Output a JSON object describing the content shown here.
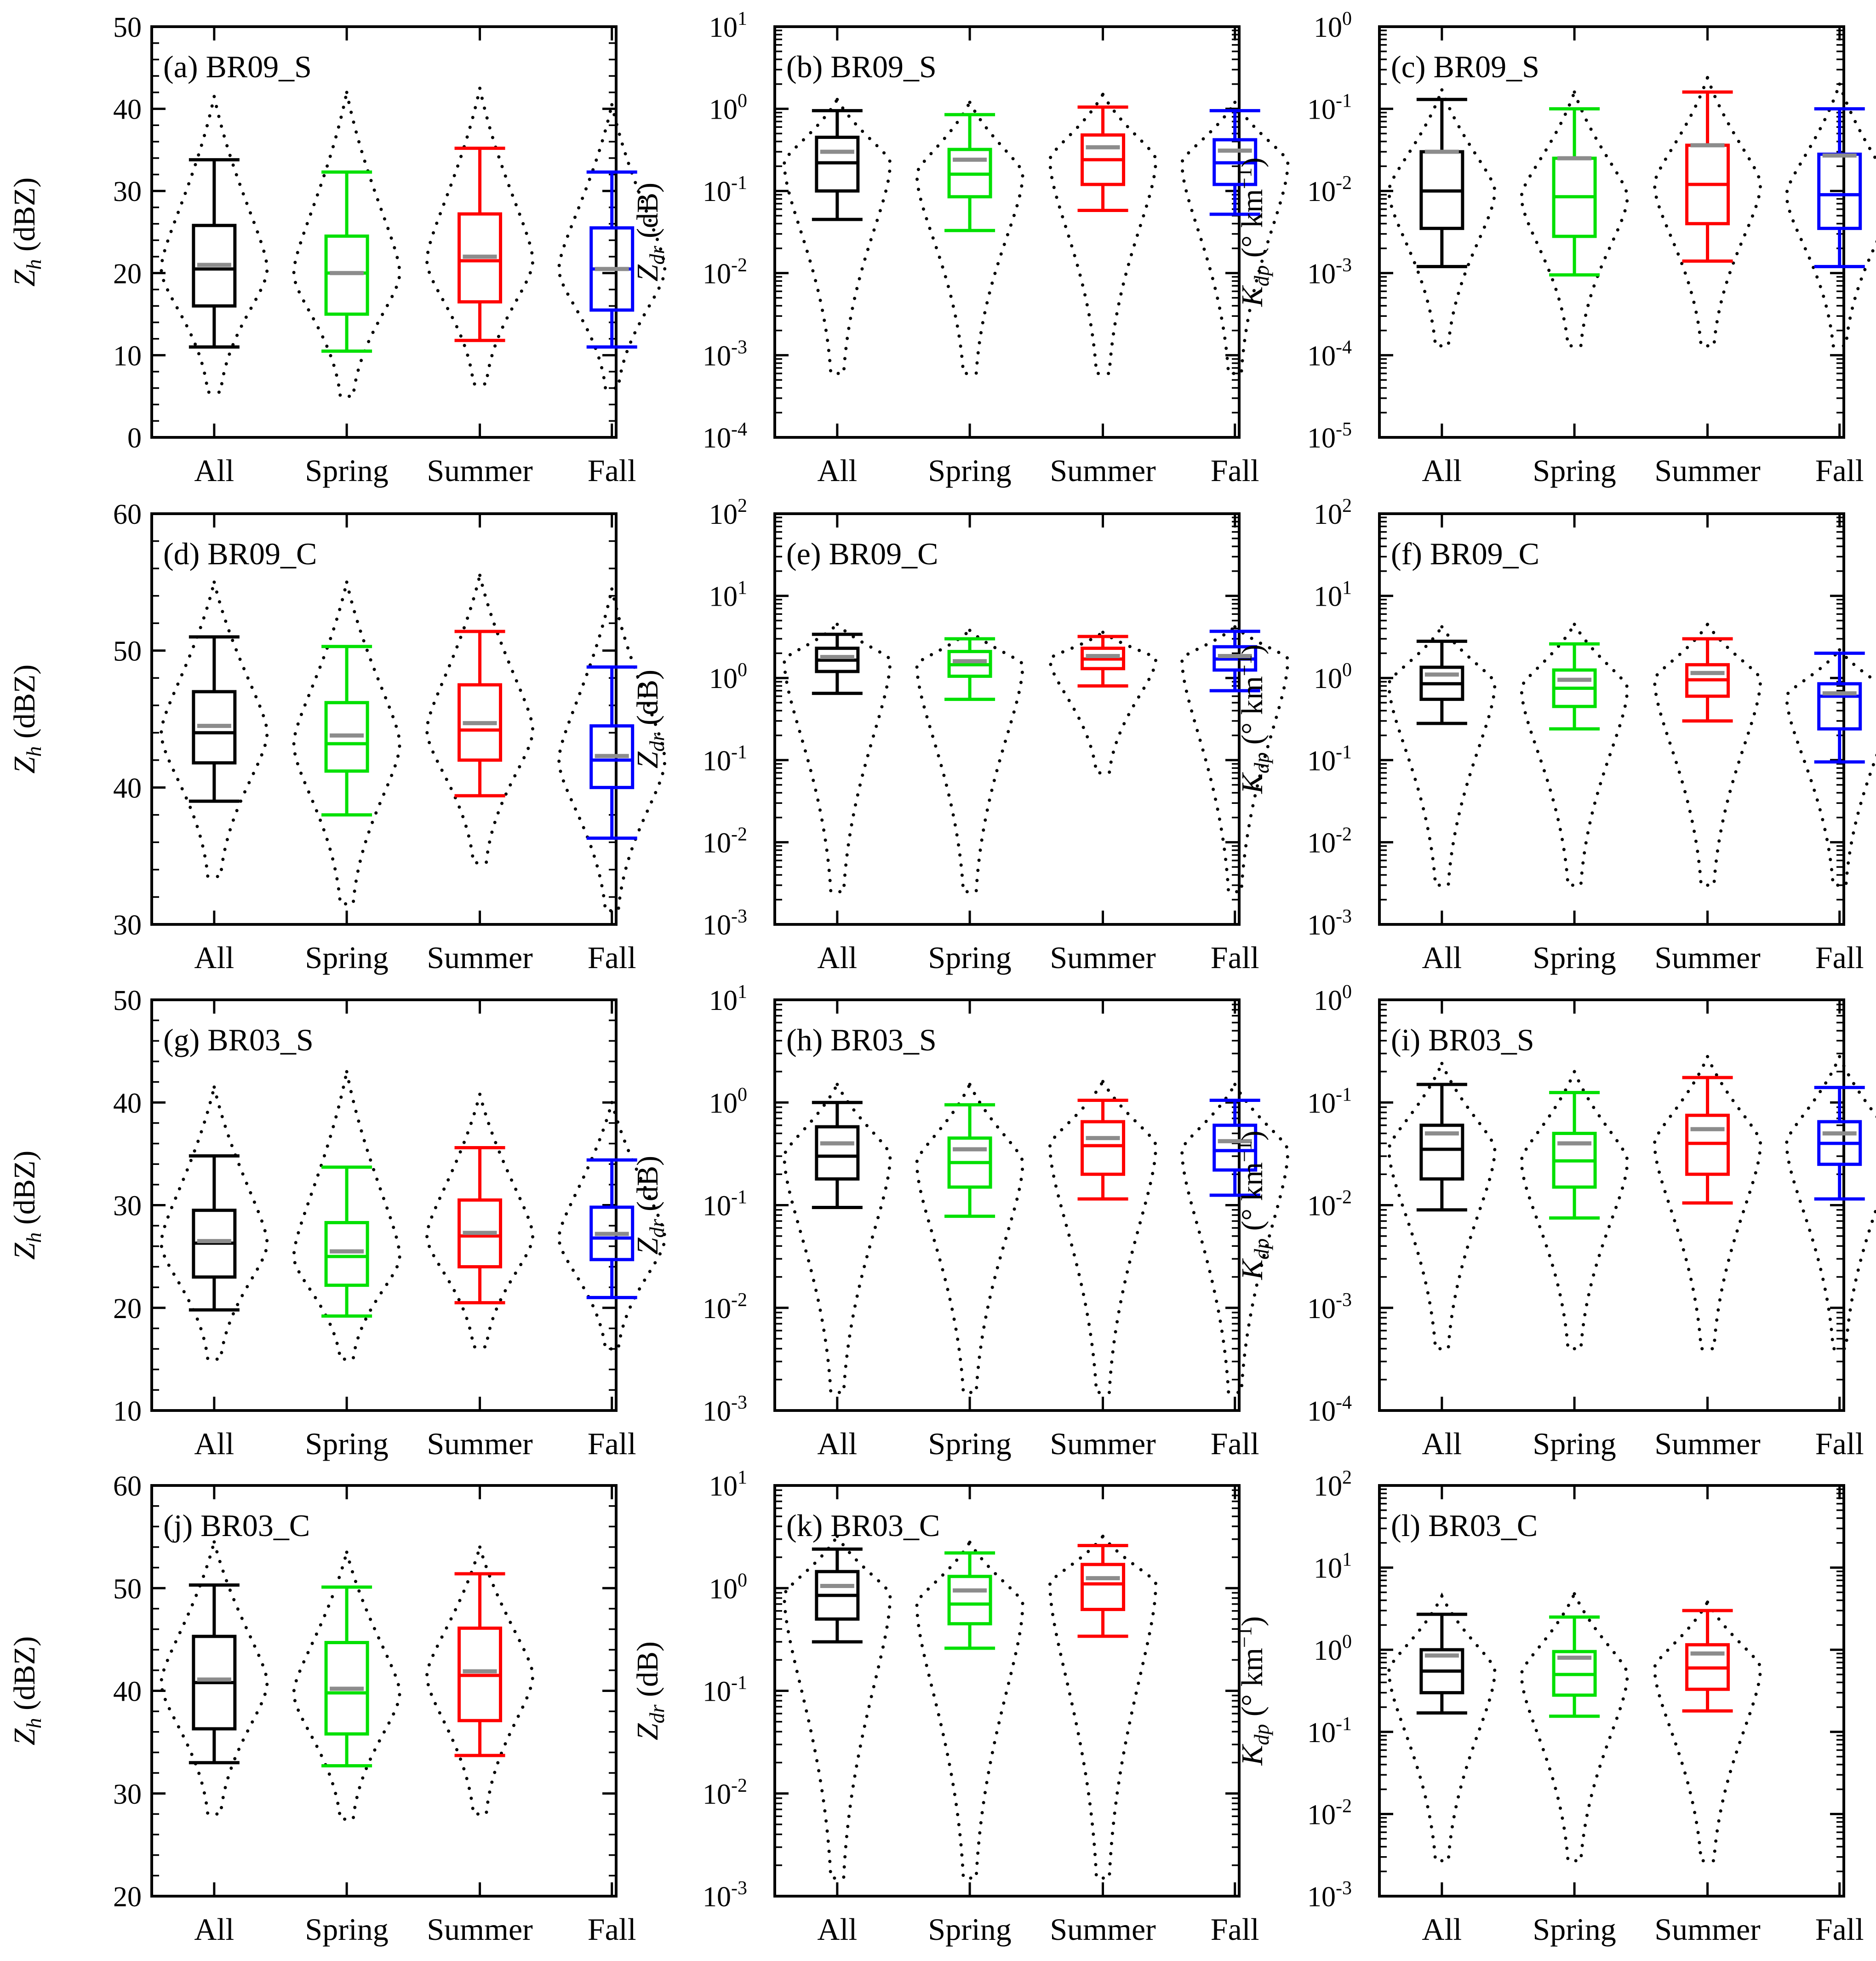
{
  "figure": {
    "categories": [
      "All",
      "Spring",
      "Summer",
      "Fall"
    ],
    "colors": {
      "All": "#000000",
      "Spring": "#00e000",
      "Summer": "#ff0000",
      "Fall": "#0000ff",
      "mean": "#8c8c8c"
    }
  },
  "chart_data": [
    {
      "id": "a",
      "title": "(a) BR09_S",
      "type": "box",
      "scale": "linear",
      "ylabel": "Z_h (dBZ)",
      "ylim": [
        0,
        50
      ],
      "yticks": [
        0,
        10,
        20,
        30,
        40,
        50
      ],
      "categories": [
        "All",
        "Spring",
        "Summer",
        "Fall"
      ],
      "boxes": [
        {
          "cat": "All",
          "whislo": 11,
          "q1": 16,
          "med": 20.5,
          "q3": 25.8,
          "whishi": 33.8,
          "mean": 21,
          "vmin": 5.5,
          "vmax": 41.5
        },
        {
          "cat": "Spring",
          "whislo": 10.5,
          "q1": 15,
          "med": 20,
          "q3": 24.5,
          "whishi": 32.3,
          "mean": 20,
          "vmin": 5,
          "vmax": 42
        },
        {
          "cat": "Summer",
          "whislo": 11.8,
          "q1": 16.5,
          "med": 21.5,
          "q3": 27.2,
          "whishi": 35.2,
          "mean": 22,
          "vmin": 6.5,
          "vmax": 42.5
        },
        {
          "cat": "Fall",
          "whislo": 11,
          "q1": 15.5,
          "med": 20.5,
          "q3": 25.5,
          "whishi": 32.3,
          "mean": 20.5,
          "vmin": 6,
          "vmax": 40.5
        }
      ]
    },
    {
      "id": "b",
      "title": "(b) BR09_S",
      "type": "box",
      "scale": "log",
      "ylabel": "Z_dr (dB)",
      "ylim": [
        -4,
        1
      ],
      "yticks": [
        -4,
        -3,
        -2,
        -1,
        0,
        1
      ],
      "categories": [
        "All",
        "Spring",
        "Summer",
        "Fall"
      ],
      "boxes": [
        {
          "cat": "All",
          "whislo": 0.045,
          "q1": 0.1,
          "med": 0.22,
          "q3": 0.45,
          "whishi": 0.95,
          "mean": 0.3,
          "vmin": 0.0006,
          "vmax": 1.3
        },
        {
          "cat": "Spring",
          "whislo": 0.033,
          "q1": 0.085,
          "med": 0.16,
          "q3": 0.32,
          "whishi": 0.85,
          "mean": 0.24,
          "vmin": 0.0006,
          "vmax": 1.2
        },
        {
          "cat": "Summer",
          "whislo": 0.058,
          "q1": 0.12,
          "med": 0.24,
          "q3": 0.48,
          "whishi": 1.05,
          "mean": 0.34,
          "vmin": 0.0006,
          "vmax": 1.5
        },
        {
          "cat": "Fall",
          "whislo": 0.052,
          "q1": 0.12,
          "med": 0.22,
          "q3": 0.42,
          "whishi": 0.95,
          "mean": 0.31,
          "vmin": 0.0006,
          "vmax": 1.2
        }
      ]
    },
    {
      "id": "c",
      "title": "(c) BR09_S",
      "type": "box",
      "scale": "log",
      "ylabel": "K_dp (° km^-1)",
      "ylim": [
        -5,
        0
      ],
      "yticks": [
        -5,
        -4,
        -3,
        -2,
        -1,
        0
      ],
      "categories": [
        "All",
        "Spring",
        "Summer",
        "Fall"
      ],
      "boxes": [
        {
          "cat": "All",
          "whislo": 0.0012,
          "q1": 0.0035,
          "med": 0.01,
          "q3": 0.03,
          "whishi": 0.13,
          "mean": 0.03,
          "vmin": 0.00013,
          "vmax": 0.17
        },
        {
          "cat": "Spring",
          "whislo": 0.00095,
          "q1": 0.0028,
          "med": 0.0085,
          "q3": 0.025,
          "whishi": 0.1,
          "mean": 0.025,
          "vmin": 0.00013,
          "vmax": 0.16
        },
        {
          "cat": "Summer",
          "whislo": 0.0014,
          "q1": 0.004,
          "med": 0.012,
          "q3": 0.036,
          "whishi": 0.16,
          "mean": 0.036,
          "vmin": 0.00013,
          "vmax": 0.24
        },
        {
          "cat": "Fall",
          "whislo": 0.0012,
          "q1": 0.0035,
          "med": 0.009,
          "q3": 0.028,
          "whishi": 0.1,
          "mean": 0.027,
          "vmin": 0.00013,
          "vmax": 0.2
        }
      ]
    },
    {
      "id": "d",
      "title": "(d) BR09_C",
      "type": "box",
      "scale": "linear",
      "ylabel": "Z_h (dBZ)",
      "ylim": [
        30,
        60
      ],
      "yticks": [
        30,
        40,
        50,
        60
      ],
      "categories": [
        "All",
        "Spring",
        "Summer",
        "Fall"
      ],
      "boxes": [
        {
          "cat": "All",
          "whislo": 39,
          "q1": 41.8,
          "med": 44,
          "q3": 47,
          "whishi": 51,
          "mean": 44.5,
          "vmin": 33.5,
          "vmax": 55
        },
        {
          "cat": "Spring",
          "whislo": 38,
          "q1": 41.2,
          "med": 43.2,
          "q3": 46.2,
          "whishi": 50.3,
          "mean": 43.8,
          "vmin": 31.5,
          "vmax": 55
        },
        {
          "cat": "Summer",
          "whislo": 39.4,
          "q1": 42,
          "med": 44.2,
          "q3": 47.5,
          "whishi": 51.4,
          "mean": 44.7,
          "vmin": 34.5,
          "vmax": 55.5
        },
        {
          "cat": "Fall",
          "whislo": 36.3,
          "q1": 40,
          "med": 42,
          "q3": 44.5,
          "whishi": 48.8,
          "mean": 42.3,
          "vmin": 31,
          "vmax": 54.5
        }
      ]
    },
    {
      "id": "e",
      "title": "(e) BR09_C",
      "type": "box",
      "scale": "log",
      "ylabel": "Z_dr (dB)",
      "ylim": [
        -3,
        2
      ],
      "yticks": [
        -3,
        -2,
        -1,
        0,
        1,
        2
      ],
      "categories": [
        "All",
        "Spring",
        "Summer",
        "Fall"
      ],
      "boxes": [
        {
          "cat": "All",
          "whislo": 0.65,
          "q1": 1.2,
          "med": 1.65,
          "q3": 2.3,
          "whishi": 3.4,
          "mean": 1.8,
          "vmin": 0.0025,
          "vmax": 4.5
        },
        {
          "cat": "Spring",
          "whislo": 0.55,
          "q1": 1.05,
          "med": 1.45,
          "q3": 2.1,
          "whishi": 3.0,
          "mean": 1.6,
          "vmin": 0.0025,
          "vmax": 3.8
        },
        {
          "cat": "Summer",
          "whislo": 0.8,
          "q1": 1.3,
          "med": 1.7,
          "q3": 2.3,
          "whishi": 3.2,
          "mean": 1.85,
          "vmin": 0.07,
          "vmax": 3.6
        },
        {
          "cat": "Fall",
          "whislo": 0.7,
          "q1": 1.25,
          "med": 1.7,
          "q3": 2.4,
          "whishi": 3.7,
          "mean": 1.85,
          "vmin": 0.0025,
          "vmax": 4.2
        }
      ]
    },
    {
      "id": "f",
      "title": "(f) BR09_C",
      "type": "box",
      "scale": "log",
      "ylabel": "K_dp (° km^-1)",
      "ylim": [
        -3,
        2
      ],
      "yticks": [
        -3,
        -2,
        -1,
        0,
        1,
        2
      ],
      "categories": [
        "All",
        "Spring",
        "Summer",
        "Fall"
      ],
      "boxes": [
        {
          "cat": "All",
          "whislo": 0.28,
          "q1": 0.55,
          "med": 0.85,
          "q3": 1.35,
          "whishi": 2.8,
          "mean": 1.1,
          "vmin": 0.003,
          "vmax": 4.2
        },
        {
          "cat": "Spring",
          "whislo": 0.24,
          "q1": 0.45,
          "med": 0.75,
          "q3": 1.25,
          "whishi": 2.6,
          "mean": 0.95,
          "vmin": 0.003,
          "vmax": 4.5
        },
        {
          "cat": "Summer",
          "whislo": 0.3,
          "q1": 0.6,
          "med": 0.95,
          "q3": 1.45,
          "whishi": 3.0,
          "mean": 1.15,
          "vmin": 0.003,
          "vmax": 4.5
        },
        {
          "cat": "Fall",
          "whislo": 0.095,
          "q1": 0.24,
          "med": 0.6,
          "q3": 0.85,
          "whishi": 2.0,
          "mean": 0.65,
          "vmin": 0.003,
          "vmax": 2.2
        }
      ]
    },
    {
      "id": "g",
      "title": "(g) BR03_S",
      "type": "box",
      "scale": "linear",
      "ylabel": "Z_h (dBZ)",
      "ylim": [
        10,
        50
      ],
      "yticks": [
        10,
        20,
        30,
        40,
        50
      ],
      "categories": [
        "All",
        "Spring",
        "Summer",
        "Fall"
      ],
      "boxes": [
        {
          "cat": "All",
          "whislo": 19.8,
          "q1": 23,
          "med": 26.3,
          "q3": 29.5,
          "whishi": 34.8,
          "mean": 26.5,
          "vmin": 15,
          "vmax": 41.5
        },
        {
          "cat": "Spring",
          "whislo": 19.2,
          "q1": 22.2,
          "med": 25,
          "q3": 28.3,
          "whishi": 33.7,
          "mean": 25.5,
          "vmin": 15,
          "vmax": 43
        },
        {
          "cat": "Summer",
          "whislo": 20.5,
          "q1": 24,
          "med": 27,
          "q3": 30.5,
          "whishi": 35.6,
          "mean": 27.3,
          "vmin": 16.2,
          "vmax": 40.8
        },
        {
          "cat": "Fall",
          "whislo": 21,
          "q1": 24.7,
          "med": 26.8,
          "q3": 29.8,
          "whishi": 34.4,
          "mean": 27.2,
          "vmin": 16,
          "vmax": 40
        }
      ]
    },
    {
      "id": "h",
      "title": "(h) BR03_S",
      "type": "box",
      "scale": "log",
      "ylabel": "Z_dr (dB)",
      "ylim": [
        -3,
        1
      ],
      "yticks": [
        -3,
        -2,
        -1,
        0,
        1
      ],
      "categories": [
        "All",
        "Spring",
        "Summer",
        "Fall"
      ],
      "boxes": [
        {
          "cat": "All",
          "whislo": 0.095,
          "q1": 0.18,
          "med": 0.3,
          "q3": 0.58,
          "whishi": 1.0,
          "mean": 0.4,
          "vmin": 0.0015,
          "vmax": 1.5
        },
        {
          "cat": "Spring",
          "whislo": 0.078,
          "q1": 0.15,
          "med": 0.26,
          "q3": 0.45,
          "whishi": 0.95,
          "mean": 0.35,
          "vmin": 0.0015,
          "vmax": 1.5
        },
        {
          "cat": "Summer",
          "whislo": 0.115,
          "q1": 0.2,
          "med": 0.38,
          "q3": 0.65,
          "whishi": 1.05,
          "mean": 0.45,
          "vmin": 0.0015,
          "vmax": 1.6
        },
        {
          "cat": "Fall",
          "whislo": 0.125,
          "q1": 0.22,
          "med": 0.34,
          "q3": 0.6,
          "whishi": 1.05,
          "mean": 0.42,
          "vmin": 0.0015,
          "vmax": 1.5
        }
      ]
    },
    {
      "id": "i",
      "title": "(i) BR03_S",
      "type": "box",
      "scale": "log",
      "ylabel": "K_dp (° km^-1)",
      "ylim": [
        -4,
        0
      ],
      "yticks": [
        -4,
        -3,
        -2,
        -1,
        0
      ],
      "categories": [
        "All",
        "Spring",
        "Summer",
        "Fall"
      ],
      "boxes": [
        {
          "cat": "All",
          "whislo": 0.009,
          "q1": 0.018,
          "med": 0.035,
          "q3": 0.06,
          "whishi": 0.15,
          "mean": 0.05,
          "vmin": 0.0004,
          "vmax": 0.24
        },
        {
          "cat": "Spring",
          "whislo": 0.0075,
          "q1": 0.015,
          "med": 0.027,
          "q3": 0.05,
          "whishi": 0.125,
          "mean": 0.04,
          "vmin": 0.0004,
          "vmax": 0.2
        },
        {
          "cat": "Summer",
          "whislo": 0.0105,
          "q1": 0.02,
          "med": 0.04,
          "q3": 0.075,
          "whishi": 0.175,
          "mean": 0.055,
          "vmin": 0.0004,
          "vmax": 0.28
        },
        {
          "cat": "Fall",
          "whislo": 0.0115,
          "q1": 0.025,
          "med": 0.04,
          "q3": 0.065,
          "whishi": 0.14,
          "mean": 0.05,
          "vmin": 0.0004,
          "vmax": 0.28
        }
      ]
    },
    {
      "id": "j",
      "title": "(j) BR03_C",
      "type": "box",
      "scale": "linear",
      "ylabel": "Z_h (dBZ)",
      "ylim": [
        20,
        60
      ],
      "yticks": [
        20,
        30,
        40,
        50,
        60
      ],
      "categories": [
        "All",
        "Spring",
        "Summer",
        "Fall"
      ],
      "boxes": [
        {
          "cat": "All",
          "whislo": 33,
          "q1": 36.3,
          "med": 40.8,
          "q3": 45.3,
          "whishi": 50.3,
          "mean": 41.1,
          "vmin": 28,
          "vmax": 54.5
        },
        {
          "cat": "Spring",
          "whislo": 32.7,
          "q1": 35.8,
          "med": 39.8,
          "q3": 44.7,
          "whishi": 50.1,
          "mean": 40.2,
          "vmin": 27.5,
          "vmax": 53.5
        },
        {
          "cat": "Summer",
          "whislo": 33.7,
          "q1": 37.1,
          "med": 41.5,
          "q3": 46.1,
          "whishi": 51.4,
          "mean": 41.9,
          "vmin": 28,
          "vmax": 54
        }
      ]
    },
    {
      "id": "k",
      "title": "(k) BR03_C",
      "type": "box",
      "scale": "log",
      "ylabel": "Z_dr (dB)",
      "ylim": [
        -3,
        1
      ],
      "yticks": [
        -3,
        -2,
        -1,
        0,
        1
      ],
      "categories": [
        "All",
        "Spring",
        "Summer",
        "Fall"
      ],
      "boxes": [
        {
          "cat": "All",
          "whislo": 0.3,
          "q1": 0.5,
          "med": 0.85,
          "q3": 1.45,
          "whishi": 2.4,
          "mean": 1.05,
          "vmin": 0.0015,
          "vmax": 3.2
        },
        {
          "cat": "Spring",
          "whislo": 0.26,
          "q1": 0.45,
          "med": 0.7,
          "q3": 1.3,
          "whishi": 2.2,
          "mean": 0.95,
          "vmin": 0.0015,
          "vmax": 2.8
        },
        {
          "cat": "Summer",
          "whislo": 0.34,
          "q1": 0.62,
          "med": 1.1,
          "q3": 1.7,
          "whishi": 2.6,
          "mean": 1.25,
          "vmin": 0.0015,
          "vmax": 3.2
        }
      ]
    },
    {
      "id": "l",
      "title": "(l) BR03_C",
      "type": "box",
      "scale": "log",
      "ylabel": "K_dp (° km^-1)",
      "ylim": [
        -3,
        2
      ],
      "yticks": [
        -3,
        -2,
        -1,
        0,
        1,
        2
      ],
      "categories": [
        "All",
        "Spring",
        "Summer",
        "Fall"
      ],
      "boxes": [
        {
          "cat": "All",
          "whislo": 0.17,
          "q1": 0.3,
          "med": 0.55,
          "q3": 1.0,
          "whishi": 2.7,
          "mean": 0.85,
          "vmin": 0.0027,
          "vmax": 4.5
        },
        {
          "cat": "Spring",
          "whislo": 0.155,
          "q1": 0.28,
          "med": 0.5,
          "q3": 0.95,
          "whishi": 2.5,
          "mean": 0.8,
          "vmin": 0.0027,
          "vmax": 4.8
        },
        {
          "cat": "Summer",
          "whislo": 0.18,
          "q1": 0.33,
          "med": 0.6,
          "q3": 1.15,
          "whishi": 3.0,
          "mean": 0.9,
          "vmin": 0.0027,
          "vmax": 3.8
        }
      ]
    }
  ]
}
